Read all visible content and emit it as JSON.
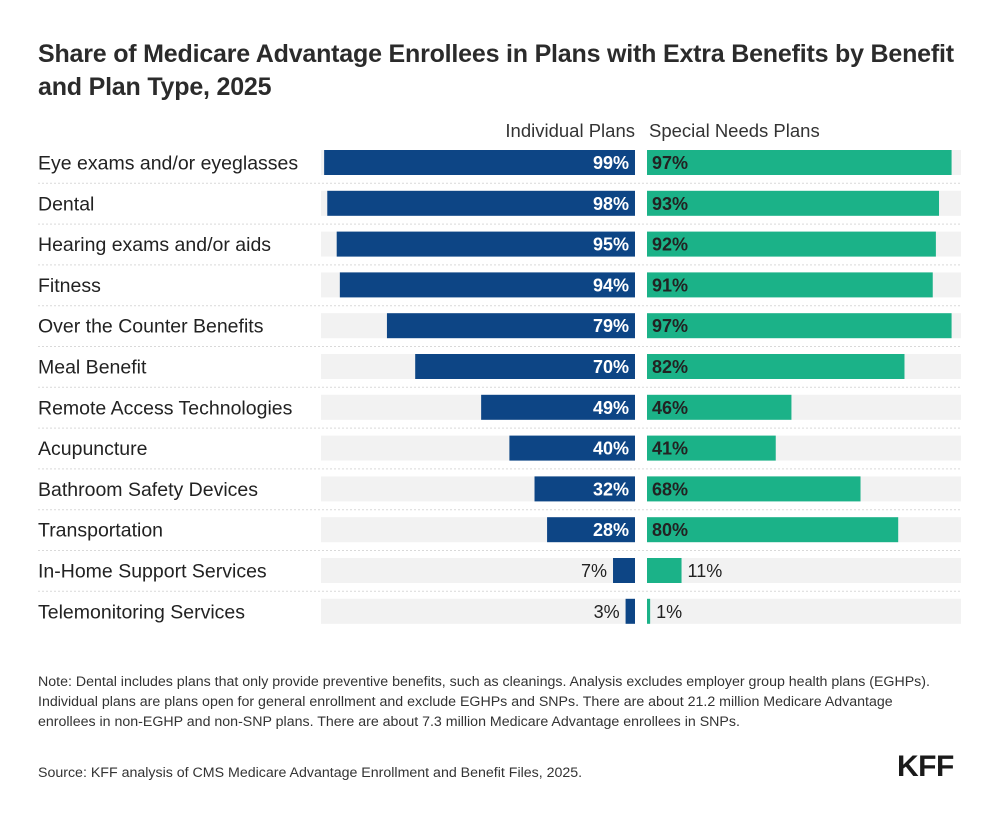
{
  "title": "Share of Medicare Advantage Enrollees in Plans with Extra Benefits by Benefit and Plan Type, 2025",
  "note": "Note: Dental includes plans that only provide preventive benefits, such as cleanings. Analysis excludes employer group health plans (EGHPs). Individual plans are plans open for general enrollment and exclude EGHPs and SNPs. There are about 21.2 million Medicare Advantage enrollees in non-EGHP and non-SNP plans. There are about 7.3 million Medicare Advantage enrollees in SNPs.",
  "source": "Source: KFF analysis of CMS Medicare Advantage Enrollment and Benefit Files, 2025.",
  "logo": "KFF",
  "colors": {
    "individual": "#0d4585",
    "snp": "#1bb288",
    "track": "#f2f2f2",
    "text": "#222222"
  },
  "chart_data": {
    "type": "bar",
    "orientation": "horizontal",
    "title": "Share of Medicare Advantage Enrollees in Plans with Extra Benefits by Benefit and Plan Type, 2025",
    "unit": "%",
    "xlim": [
      0,
      100
    ],
    "categories": [
      "Eye exams and/or eyeglasses",
      "Dental",
      "Hearing exams and/or aids",
      "Fitness",
      "Over the Counter Benefits",
      "Meal Benefit",
      "Remote Access Technologies",
      "Acupuncture",
      "Bathroom Safety Devices",
      "Transportation",
      "In-Home Support Services",
      "Telemonitoring Services"
    ],
    "series": [
      {
        "name": "Individual Plans",
        "values": [
          99,
          98,
          95,
          94,
          79,
          70,
          49,
          40,
          32,
          28,
          7,
          3
        ],
        "labels": [
          "99%",
          "98%",
          "95%",
          "94%",
          "79%",
          "70%",
          "49%",
          "40%",
          "32%",
          "28%",
          "7%",
          "3%"
        ]
      },
      {
        "name": "Special Needs Plans",
        "values": [
          97,
          93,
          92,
          91,
          97,
          82,
          46,
          41,
          68,
          80,
          11,
          1
        ],
        "labels": [
          "97%",
          "93%",
          "92%",
          "91%",
          "97%",
          "82%",
          "46%",
          "41%",
          "68%",
          "80%",
          "11%",
          "1%"
        ]
      }
    ]
  }
}
